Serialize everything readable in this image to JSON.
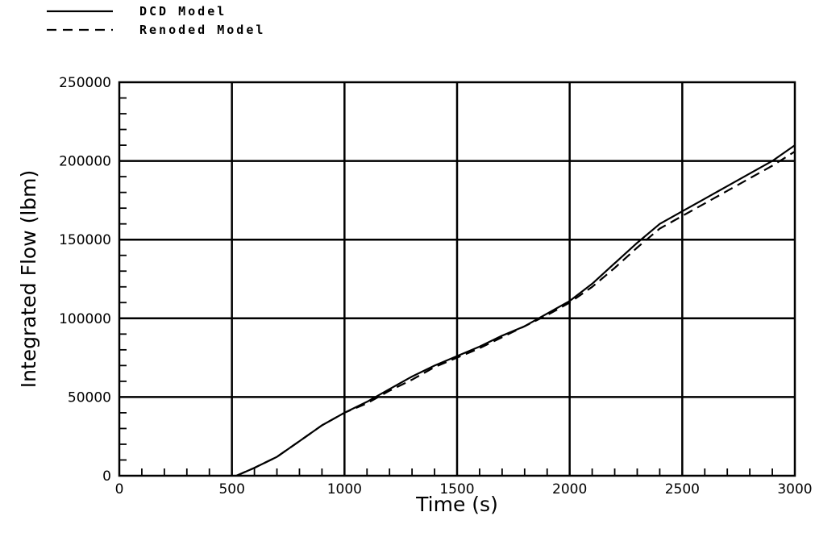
{
  "chart_data": {
    "type": "line",
    "title": "",
    "xlabel": "Time  (s)",
    "ylabel": "Integrated Flow (lbm)",
    "xlim": [
      0,
      3000
    ],
    "ylim": [
      0,
      250000
    ],
    "grid": true,
    "legend_position": "top-left",
    "x_ticks": [
      0,
      500,
      1000,
      1500,
      2000,
      2500,
      3000
    ],
    "x_tick_labels": [
      "0",
      "500",
      "1000",
      "1500",
      "2000",
      "2500",
      "3000"
    ],
    "y_ticks": [
      0,
      50000,
      100000,
      150000,
      200000,
      250000
    ],
    "y_tick_labels": [
      "0",
      "50000",
      "100000",
      "150000",
      "200000",
      "250000"
    ],
    "series": [
      {
        "name": "DCD Model",
        "style": "solid",
        "x": [
          520,
          600,
          700,
          800,
          900,
          1000,
          1100,
          1200,
          1300,
          1400,
          1500,
          1600,
          1700,
          1800,
          1900,
          2000,
          2100,
          2200,
          2300,
          2400,
          2500,
          2600,
          2700,
          2800,
          2900,
          3000
        ],
        "y": [
          0,
          5000,
          12000,
          22000,
          32000,
          40000,
          47000,
          55000,
          63000,
          70000,
          76000,
          82000,
          89000,
          95000,
          103000,
          111000,
          122000,
          135000,
          148000,
          160000,
          168000,
          176000,
          184000,
          192000,
          200000,
          210000
        ]
      },
      {
        "name": "Renoded Model",
        "style": "dashed",
        "x": [
          520,
          600,
          700,
          800,
          900,
          1000,
          1100,
          1200,
          1300,
          1400,
          1500,
          1600,
          1700,
          1800,
          1900,
          2000,
          2100,
          2200,
          2300,
          2400,
          2500,
          2600,
          2700,
          2800,
          2900,
          3000
        ],
        "y": [
          0,
          5000,
          12000,
          22000,
          32000,
          40000,
          46000,
          54000,
          61000,
          69000,
          75000,
          81000,
          88000,
          95000,
          102000,
          110000,
          120000,
          132000,
          145000,
          157000,
          165000,
          173000,
          181000,
          189000,
          197000,
          206000
        ]
      }
    ]
  }
}
